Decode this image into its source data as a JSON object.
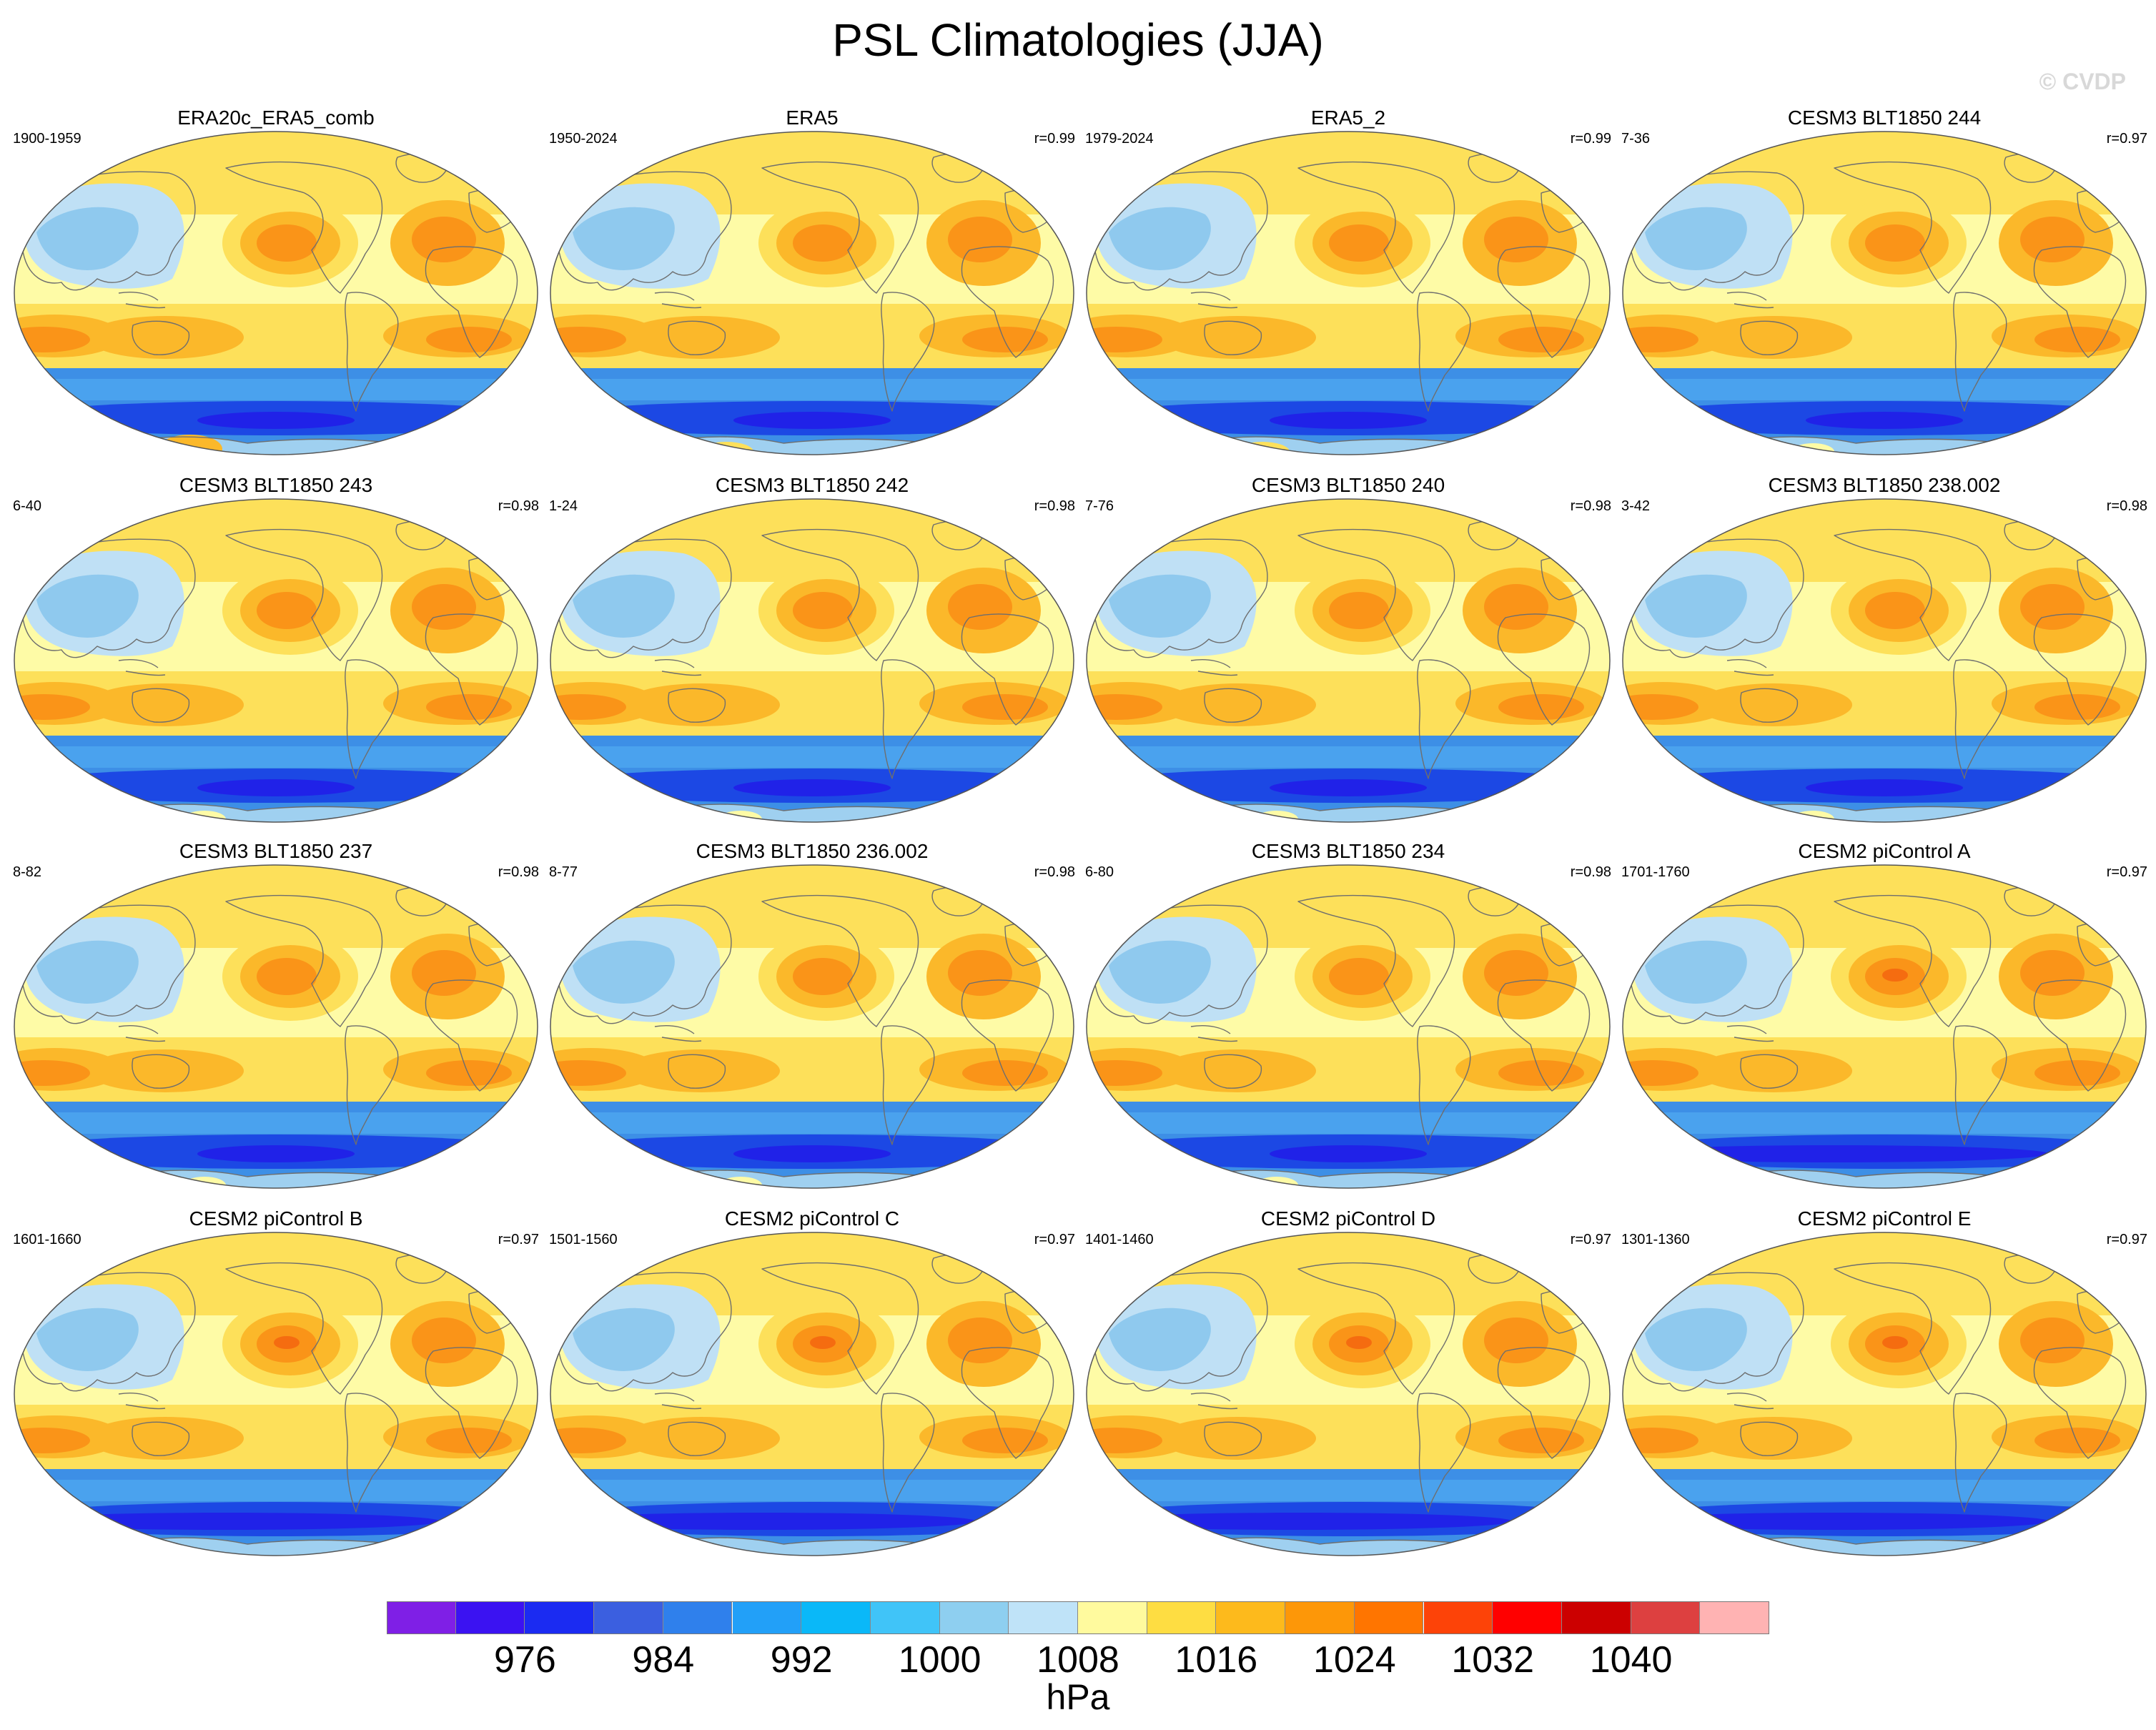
{
  "title": "PSL Climatologies (JJA)",
  "watermark": "© CVDP",
  "panels": [
    {
      "name": "ERA20c_ERA5_comb",
      "years": "1900-1959",
      "r": "",
      "variant": "obs1"
    },
    {
      "name": "ERA5",
      "years": "1950-2024",
      "r": "r=0.99",
      "variant": "obs"
    },
    {
      "name": "ERA5_2",
      "years": "1979-2024",
      "r": "r=0.99",
      "variant": "obs"
    },
    {
      "name": "CESM3 BLT1850 244",
      "years": "7-36",
      "r": "r=0.97",
      "variant": "cesm3"
    },
    {
      "name": "CESM3 BLT1850 243",
      "years": "6-40",
      "r": "r=0.98",
      "variant": "cesm3"
    },
    {
      "name": "CESM3 BLT1850 242",
      "years": "1-24",
      "r": "r=0.98",
      "variant": "cesm3"
    },
    {
      "name": "CESM3 BLT1850 240",
      "years": "7-76",
      "r": "r=0.98",
      "variant": "cesm3"
    },
    {
      "name": "CESM3 BLT1850 238.002",
      "years": "3-42",
      "r": "r=0.98",
      "variant": "cesm3"
    },
    {
      "name": "CESM3 BLT1850 237",
      "years": "8-82",
      "r": "r=0.98",
      "variant": "cesm3"
    },
    {
      "name": "CESM3 BLT1850 236.002",
      "years": "8-77",
      "r": "r=0.98",
      "variant": "cesm3"
    },
    {
      "name": "CESM3 BLT1850 234",
      "years": "6-80",
      "r": "r=0.98",
      "variant": "cesm3"
    },
    {
      "name": "CESM2 piControl A",
      "years": "1701-1760",
      "r": "r=0.97",
      "variant": "cesm2"
    },
    {
      "name": "CESM2 piControl B",
      "years": "1601-1660",
      "r": "r=0.97",
      "variant": "cesm2"
    },
    {
      "name": "CESM2 piControl C",
      "years": "1501-1560",
      "r": "r=0.97",
      "variant": "cesm2"
    },
    {
      "name": "CESM2 piControl D",
      "years": "1401-1460",
      "r": "r=0.97",
      "variant": "cesm2"
    },
    {
      "name": "CESM2 piControl E",
      "years": "1301-1360",
      "r": "r=0.97",
      "variant": "cesm2"
    }
  ],
  "colorbar": {
    "units": "hPa",
    "colors": [
      "#7f1fe6",
      "#3b12f2",
      "#1b2bf2",
      "#3b5fe0",
      "#2f80ec",
      "#22a0f8",
      "#0ab8f8",
      "#40c4f8",
      "#8ecff0",
      "#bfe3f8",
      "#fffa9e",
      "#fedd42",
      "#fdba1c",
      "#fd9708",
      "#ff7500",
      "#fd4308",
      "#ff0000",
      "#cc0000",
      "#dd4040",
      "#ffb3b3"
    ],
    "tick_labels": [
      "976",
      "984",
      "992",
      "1000",
      "1008",
      "1016",
      "1024",
      "1032",
      "1040"
    ],
    "tick_values": [
      976,
      984,
      992,
      1000,
      1008,
      1016,
      1024,
      1032,
      1040
    ],
    "min": 968,
    "max": 1048
  },
  "map_palette": {
    "ocean_yellow": "#fefba6",
    "midlat_gold": "#fde05a",
    "high_orange": "#fbb82a",
    "high_core": "#fa9418",
    "high_peak": "#f56c10",
    "low_light": "#bfe0f5",
    "low_mid": "#8fc9ee",
    "southern_blue": "#3d8fe6",
    "southern_deep": "#1c48e4",
    "southern_core": "#2022e8",
    "antarctic_light": "#9fd0f0",
    "coastline": "#6e6e6e"
  }
}
